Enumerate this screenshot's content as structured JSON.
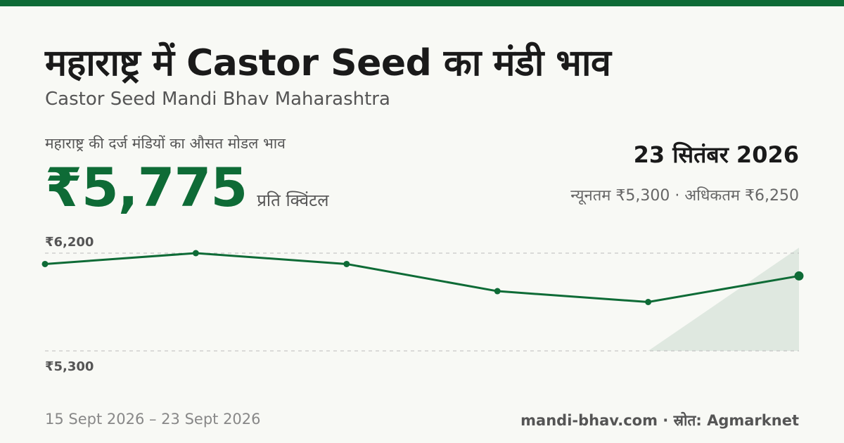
{
  "header": {
    "title": "महाराष्ट्र में Castor Seed का मंडी भाव",
    "subtitle": "Castor Seed Mandi Bhav Maharashtra"
  },
  "summary": {
    "caption": "महाराष्ट्र की दर्ज मंडियों का औसत मोडल भाव",
    "price": "₹5,775",
    "unit": "प्रति क्विंटल",
    "date": "23 सितंबर 2026",
    "range_text": "न्यूनतम ₹5,300 · अधिकतम ₹6,250"
  },
  "footer": {
    "date_range": "15 Sept 2026 – 23 Sept 2026",
    "source": "mandi-bhav.com · स्रोत: Agmarknet"
  },
  "colors": {
    "accent": "#0e6b36",
    "band": "#dfe8e0",
    "gridline": "#bbbbbb"
  },
  "chart_data": {
    "type": "line",
    "series": [
      {
        "values": [
          6100,
          6200,
          6100,
          5850,
          5750,
          5990
        ]
      }
    ],
    "ylim": [
      5300,
      6200
    ],
    "y_ticks": [
      {
        "value": 6200,
        "label": "₹6,200"
      },
      {
        "value": 5300,
        "label": "₹5,300"
      }
    ],
    "latest_range": {
      "min": 5300,
      "max": 6250,
      "min_label": "न्यूनतम ₹5,300",
      "max_label": "अधिकतम ₹6,250"
    },
    "grid": "dashed reference lines at ticks"
  }
}
